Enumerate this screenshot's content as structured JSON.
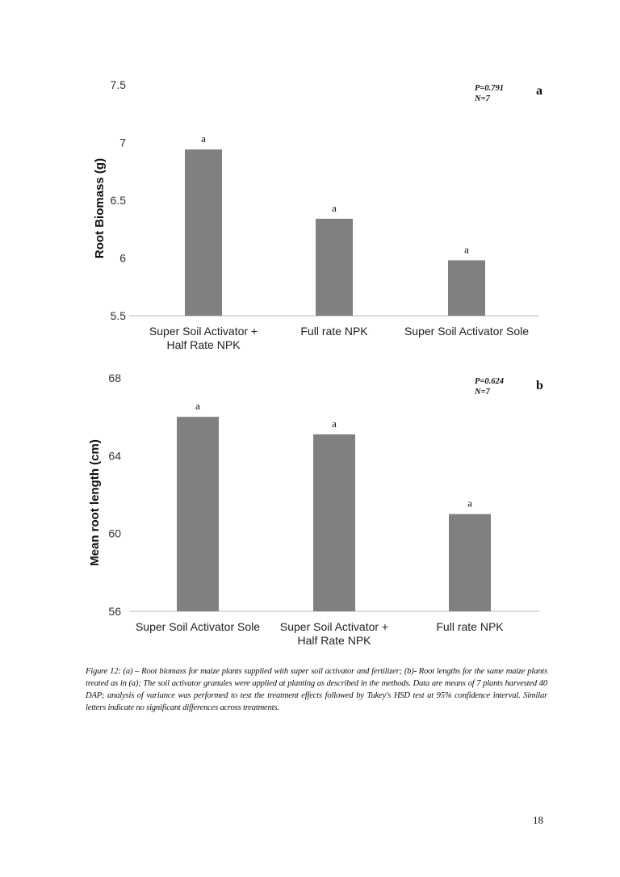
{
  "chart_data": [
    {
      "type": "bar",
      "panel_label": "a",
      "ylabel": "Root Biomass (g)",
      "ylim": [
        5.5,
        7.5
      ],
      "yticks": [
        "7.5",
        "7",
        "6.5",
        "6",
        "5.5"
      ],
      "grid": false,
      "categories": [
        [
          "Super Soil Activator +",
          "Half Rate NPK"
        ],
        [
          "Full rate NPK"
        ],
        [
          "Super Soil Activator Sole"
        ]
      ],
      "values": [
        6.94,
        6.34,
        5.98
      ],
      "significance_letters": [
        "a",
        "a",
        "a"
      ],
      "annotations": [
        "P=0.791",
        "N=7"
      ],
      "bar_color": "#808080"
    },
    {
      "type": "bar",
      "panel_label": "b",
      "ylabel": "Mean root length (cm)",
      "ylim": [
        56,
        68
      ],
      "yticks": [
        "68",
        "64",
        "60",
        "56"
      ],
      "grid": false,
      "categories": [
        [
          "Super Soil Activator Sole"
        ],
        [
          "Super Soil Activator +",
          "Half Rate NPK"
        ],
        [
          "Full rate NPK"
        ]
      ],
      "values": [
        66.0,
        65.1,
        61.0
      ],
      "significance_letters": [
        "a",
        "a",
        "a"
      ],
      "annotations": [
        "P=0.624",
        "N=7"
      ],
      "bar_color": "#808080"
    }
  ],
  "caption": "Figure 12: (a) – Root biomass for maize plants supplied with super soil activator and fertilizer; (b)- Root lengths for the same maize plants treated as in (a); The soil activator granules were applied at planting as described in the methods. Data are means of 7 plants harvested 40 DAP; analysis of variance was performed to test the treatment effects followed by Tukey's HSD test at 95% confidence interval. Similar letters indicate no significant differences across treatments.",
  "page_number": "18"
}
